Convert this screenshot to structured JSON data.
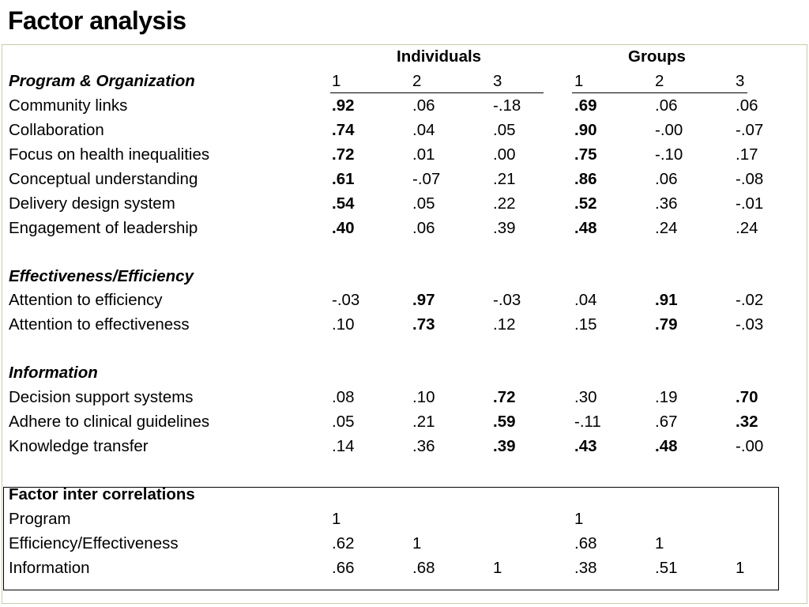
{
  "title": "Factor analysis",
  "groups": {
    "individuals": "Individuals",
    "groups": "Groups"
  },
  "section_program": {
    "heading": "Program & Organization",
    "factors": [
      "1",
      "2",
      "3",
      "1",
      "2",
      "3"
    ]
  },
  "program_rows": [
    {
      "label": "Community links",
      "values": [
        ".92",
        ".06",
        "-.18",
        ".69",
        ".06",
        ".06"
      ]
    },
    {
      "label": "Collaboration",
      "values": [
        ".74",
        ".04",
        ".05",
        ".90",
        "-.00",
        "-.07"
      ]
    },
    {
      "label": "Focus on health inequalities",
      "values": [
        ".72",
        ".01",
        ".00",
        ".75",
        "-.10",
        ".17"
      ]
    },
    {
      "label": "Conceptual understanding",
      "values": [
        ".61",
        "-.07",
        ".21",
        ".86",
        ".06",
        "-.08"
      ]
    },
    {
      "label": "Delivery design system",
      "values": [
        ".54",
        ".05",
        ".22",
        ".52",
        ".36",
        "-.01"
      ]
    },
    {
      "label": "Engagement of leadership",
      "values": [
        ".40",
        ".06",
        ".39",
        ".48",
        ".24",
        ".24"
      ]
    }
  ],
  "section_effectiveness": {
    "heading": "Effectiveness/Efficiency"
  },
  "effectiveness_rows": [
    {
      "label": "Attention to efficiency",
      "values": [
        "-.03",
        ".97",
        "-.03",
        ".04",
        ".91",
        "-.02"
      ]
    },
    {
      "label": "Attention to effectiveness",
      "values": [
        ".10",
        ".73",
        ".12",
        ".15",
        ".79",
        "-.03"
      ]
    }
  ],
  "section_information": {
    "heading": "Information"
  },
  "information_rows": [
    {
      "label": "Decision support systems",
      "values": [
        ".08",
        ".10",
        ".72",
        ".30",
        ".19",
        ".70"
      ]
    },
    {
      "label": "Adhere to clinical guidelines",
      "values": [
        ".05",
        ".21",
        ".59",
        "-.11",
        ".67",
        ".32"
      ]
    },
    {
      "label": "Knowledge transfer",
      "values": [
        ".14",
        ".36",
        ".39",
        ".43",
        ".48",
        "-.00"
      ]
    }
  ],
  "correlations": {
    "heading": "Factor inter correlations",
    "rows": [
      {
        "label": "Program",
        "values": [
          "1",
          "",
          "",
          "1",
          "",
          ""
        ]
      },
      {
        "label": "Efficiency/Effectiveness",
        "values": [
          ".62",
          "1",
          "",
          ".68",
          "1",
          ""
        ]
      },
      {
        "label": "Information",
        "values": [
          ".66",
          ".68",
          "1",
          ".38",
          ".51",
          "1"
        ]
      }
    ]
  }
}
